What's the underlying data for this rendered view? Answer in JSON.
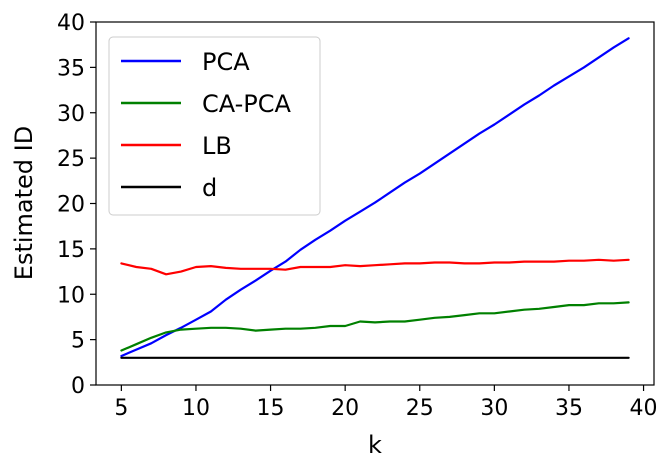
{
  "chart_data": {
    "type": "line",
    "title": "",
    "xlabel": "k",
    "ylabel": "Estimated ID",
    "xlim": [
      3.3,
      40.7
    ],
    "ylim": [
      0,
      40
    ],
    "xticks": [
      5,
      10,
      15,
      20,
      25,
      30,
      35,
      40
    ],
    "yticks": [
      0,
      5,
      10,
      15,
      20,
      25,
      30,
      35,
      40
    ],
    "grid": false,
    "legend_position": "top-left",
    "x": [
      5,
      6,
      7,
      8,
      9,
      10,
      11,
      12,
      13,
      14,
      15,
      16,
      17,
      18,
      19,
      20,
      21,
      22,
      23,
      24,
      25,
      26,
      27,
      28,
      29,
      30,
      31,
      32,
      33,
      34,
      35,
      36,
      37,
      38,
      39
    ],
    "series": [
      {
        "name": "PCA",
        "color": "#0000ff",
        "values": [
          3.2,
          3.9,
          4.6,
          5.5,
          6.3,
          7.2,
          8.1,
          9.4,
          10.5,
          11.5,
          12.6,
          13.6,
          14.9,
          16.0,
          17.0,
          18.1,
          19.1,
          20.1,
          21.2,
          22.3,
          23.3,
          24.4,
          25.5,
          26.6,
          27.7,
          28.7,
          29.8,
          30.9,
          31.9,
          33.0,
          34.0,
          35.0,
          36.1,
          37.2,
          38.2
        ]
      },
      {
        "name": "CA-PCA",
        "color": "#008000",
        "values": [
          3.8,
          4.5,
          5.2,
          5.8,
          6.1,
          6.2,
          6.3,
          6.3,
          6.2,
          6.0,
          6.1,
          6.2,
          6.2,
          6.3,
          6.5,
          6.5,
          7.0,
          6.9,
          7.0,
          7.0,
          7.2,
          7.4,
          7.5,
          7.7,
          7.9,
          7.9,
          8.1,
          8.3,
          8.4,
          8.6,
          8.8,
          8.8,
          9.0,
          9.0,
          9.1
        ]
      },
      {
        "name": "LB",
        "color": "#ff0000",
        "values": [
          13.4,
          13.0,
          12.8,
          12.2,
          12.5,
          13.0,
          13.1,
          12.9,
          12.8,
          12.8,
          12.8,
          12.7,
          13.0,
          13.0,
          13.0,
          13.2,
          13.1,
          13.2,
          13.3,
          13.4,
          13.4,
          13.5,
          13.5,
          13.4,
          13.4,
          13.5,
          13.5,
          13.6,
          13.6,
          13.6,
          13.7,
          13.7,
          13.8,
          13.7,
          13.8
        ]
      },
      {
        "name": "d",
        "color": "#000000",
        "values": [
          3,
          3,
          3,
          3,
          3,
          3,
          3,
          3,
          3,
          3,
          3,
          3,
          3,
          3,
          3,
          3,
          3,
          3,
          3,
          3,
          3,
          3,
          3,
          3,
          3,
          3,
          3,
          3,
          3,
          3,
          3,
          3,
          3,
          3,
          3
        ]
      }
    ]
  }
}
